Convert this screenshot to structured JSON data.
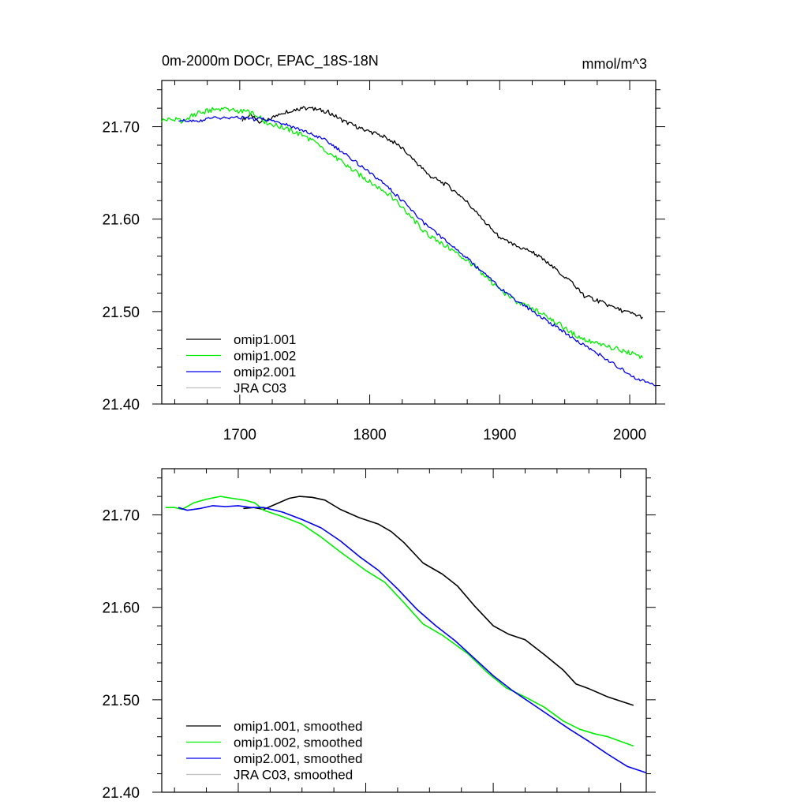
{
  "chart_data": [
    {
      "type": "line",
      "title": "0m-2000m DOCr, EPAC_18S-18N",
      "units": "mmol/m^3",
      "xlabel": "",
      "ylabel": "",
      "xlim": [
        1640,
        2020
      ],
      "ylim": [
        21.4,
        21.75
      ],
      "x_ticks": [
        1700,
        1800,
        1900,
        2000
      ],
      "x_tick_labels": [
        "1700",
        "1800",
        "1900",
        "2000"
      ],
      "y_ticks": [
        21.4,
        21.5,
        21.6,
        21.7
      ],
      "y_tick_labels": [
        "21.40",
        "21.50",
        "21.60",
        "21.70"
      ],
      "grid": false,
      "legend_position": "bottom-left",
      "series": [
        {
          "name": "omip1.001",
          "color": "#000000",
          "noise": 0.0022,
          "points": [
            [
              1702,
              21.708
            ],
            [
              1708,
              21.712
            ],
            [
              1715,
              21.706
            ],
            [
              1722,
              21.707
            ],
            [
              1730,
              21.714
            ],
            [
              1740,
              21.718
            ],
            [
              1748,
              21.72
            ],
            [
              1758,
              21.719
            ],
            [
              1768,
              21.716
            ],
            [
              1780,
              21.706
            ],
            [
              1795,
              21.697
            ],
            [
              1810,
              21.69
            ],
            [
              1820,
              21.682
            ],
            [
              1830,
              21.67
            ],
            [
              1845,
              21.648
            ],
            [
              1860,
              21.636
            ],
            [
              1872,
              21.623
            ],
            [
              1885,
              21.602
            ],
            [
              1900,
              21.58
            ],
            [
              1912,
              21.571
            ],
            [
              1925,
              21.565
            ],
            [
              1940,
              21.549
            ],
            [
              1955,
              21.532
            ],
            [
              1965,
              21.517
            ],
            [
              1975,
              21.512
            ],
            [
              1990,
              21.503
            ],
            [
              2010,
              21.494
            ]
          ]
        },
        {
          "name": "omip1.002",
          "color": "#00ee00",
          "noise": 0.0028,
          "points": [
            [
              1640,
              21.707
            ],
            [
              1648,
              21.708
            ],
            [
              1656,
              21.706
            ],
            [
              1665,
              21.713
            ],
            [
              1675,
              21.717
            ],
            [
              1686,
              21.72
            ],
            [
              1695,
              21.718
            ],
            [
              1705,
              21.716
            ],
            [
              1713,
              21.713
            ],
            [
              1720,
              21.705
            ],
            [
              1735,
              21.698
            ],
            [
              1750,
              21.69
            ],
            [
              1765,
              21.676
            ],
            [
              1780,
              21.66
            ],
            [
              1800,
              21.64
            ],
            [
              1815,
              21.627
            ],
            [
              1830,
              21.605
            ],
            [
              1845,
              21.582
            ],
            [
              1860,
              21.57
            ],
            [
              1880,
              21.55
            ],
            [
              1895,
              21.53
            ],
            [
              1910,
              21.513
            ],
            [
              1925,
              21.503
            ],
            [
              1940,
              21.492
            ],
            [
              1955,
              21.477
            ],
            [
              1968,
              21.468
            ],
            [
              1980,
              21.463
            ],
            [
              1990,
              21.46
            ],
            [
              2000,
              21.455
            ],
            [
              2010,
              21.45
            ]
          ]
        },
        {
          "name": "omip2.001",
          "color": "#0000ee",
          "noise": 0.0018,
          "points": [
            [
              1653,
              21.708
            ],
            [
              1660,
              21.705
            ],
            [
              1670,
              21.707
            ],
            [
              1680,
              21.71
            ],
            [
              1690,
              21.709
            ],
            [
              1700,
              21.71
            ],
            [
              1710,
              21.708
            ],
            [
              1720,
              21.708
            ],
            [
              1735,
              21.703
            ],
            [
              1750,
              21.695
            ],
            [
              1765,
              21.686
            ],
            [
              1780,
              21.672
            ],
            [
              1795,
              21.655
            ],
            [
              1810,
              21.64
            ],
            [
              1825,
              21.62
            ],
            [
              1840,
              21.598
            ],
            [
              1855,
              21.58
            ],
            [
              1870,
              21.564
            ],
            [
              1885,
              21.545
            ],
            [
              1900,
              21.526
            ],
            [
              1915,
              21.51
            ],
            [
              1930,
              21.496
            ],
            [
              1945,
              21.482
            ],
            [
              1960,
              21.468
            ],
            [
              1975,
              21.455
            ],
            [
              1990,
              21.441
            ],
            [
              2005,
              21.428
            ],
            [
              2020,
              21.42
            ]
          ]
        },
        {
          "name": "JRA C03",
          "color": "#c0c0c0",
          "points": []
        }
      ]
    },
    {
      "type": "line",
      "title": "",
      "xlabel": "",
      "ylabel": "",
      "xlim": [
        1640,
        2020
      ],
      "ylim": [
        21.4,
        21.75
      ],
      "x_ticks": [
        1700,
        1800,
        1900,
        2000
      ],
      "y_ticks": [
        21.4,
        21.5,
        21.6,
        21.7
      ],
      "y_tick_labels": [
        "21.40",
        "21.50",
        "21.60",
        "21.70"
      ],
      "grid": false,
      "legend_position": "bottom-left",
      "series": [
        {
          "name": "omip1.001, smoothed",
          "color": "#000000",
          "noise": 0,
          "points": [
            [
              1704,
              21.707
            ],
            [
              1712,
              21.708
            ],
            [
              1720,
              21.706
            ],
            [
              1730,
              21.712
            ],
            [
              1740,
              21.718
            ],
            [
              1748,
              21.72
            ],
            [
              1758,
              21.719
            ],
            [
              1768,
              21.716
            ],
            [
              1780,
              21.706
            ],
            [
              1795,
              21.697
            ],
            [
              1810,
              21.69
            ],
            [
              1820,
              21.682
            ],
            [
              1830,
              21.67
            ],
            [
              1845,
              21.648
            ],
            [
              1860,
              21.636
            ],
            [
              1872,
              21.623
            ],
            [
              1885,
              21.602
            ],
            [
              1900,
              21.58
            ],
            [
              1912,
              21.571
            ],
            [
              1925,
              21.565
            ],
            [
              1940,
              21.549
            ],
            [
              1955,
              21.532
            ],
            [
              1965,
              21.517
            ],
            [
              1975,
              21.512
            ],
            [
              1990,
              21.503
            ],
            [
              2010,
              21.494
            ]
          ]
        },
        {
          "name": "omip1.002, smoothed",
          "color": "#00ee00",
          "noise": 0,
          "points": [
            [
              1643,
              21.708
            ],
            [
              1650,
              21.708
            ],
            [
              1656,
              21.706
            ],
            [
              1665,
              21.713
            ],
            [
              1675,
              21.717
            ],
            [
              1686,
              21.72
            ],
            [
              1695,
              21.718
            ],
            [
              1705,
              21.716
            ],
            [
              1713,
              21.713
            ],
            [
              1720,
              21.705
            ],
            [
              1735,
              21.698
            ],
            [
              1750,
              21.69
            ],
            [
              1765,
              21.676
            ],
            [
              1780,
              21.66
            ],
            [
              1800,
              21.64
            ],
            [
              1815,
              21.627
            ],
            [
              1830,
              21.605
            ],
            [
              1845,
              21.582
            ],
            [
              1860,
              21.57
            ],
            [
              1880,
              21.55
            ],
            [
              1895,
              21.53
            ],
            [
              1910,
              21.513
            ],
            [
              1925,
              21.503
            ],
            [
              1940,
              21.492
            ],
            [
              1955,
              21.477
            ],
            [
              1968,
              21.468
            ],
            [
              1980,
              21.463
            ],
            [
              1990,
              21.46
            ],
            [
              2000,
              21.455
            ],
            [
              2010,
              21.45
            ]
          ]
        },
        {
          "name": "omip2.001, smoothed",
          "color": "#0000ee",
          "noise": 0,
          "points": [
            [
              1653,
              21.708
            ],
            [
              1660,
              21.705
            ],
            [
              1670,
              21.707
            ],
            [
              1680,
              21.71
            ],
            [
              1690,
              21.709
            ],
            [
              1700,
              21.71
            ],
            [
              1710,
              21.708
            ],
            [
              1720,
              21.708
            ],
            [
              1735,
              21.703
            ],
            [
              1750,
              21.695
            ],
            [
              1765,
              21.686
            ],
            [
              1780,
              21.672
            ],
            [
              1795,
              21.655
            ],
            [
              1810,
              21.64
            ],
            [
              1825,
              21.62
            ],
            [
              1840,
              21.598
            ],
            [
              1855,
              21.58
            ],
            [
              1870,
              21.564
            ],
            [
              1885,
              21.545
            ],
            [
              1900,
              21.526
            ],
            [
              1915,
              21.51
            ],
            [
              1930,
              21.496
            ],
            [
              1945,
              21.482
            ],
            [
              1960,
              21.468
            ],
            [
              1975,
              21.455
            ],
            [
              1990,
              21.441
            ],
            [
              2005,
              21.428
            ],
            [
              2020,
              21.421
            ]
          ]
        },
        {
          "name": "JRA C03, smoothed",
          "color": "#c0c0c0",
          "points": []
        }
      ]
    }
  ]
}
